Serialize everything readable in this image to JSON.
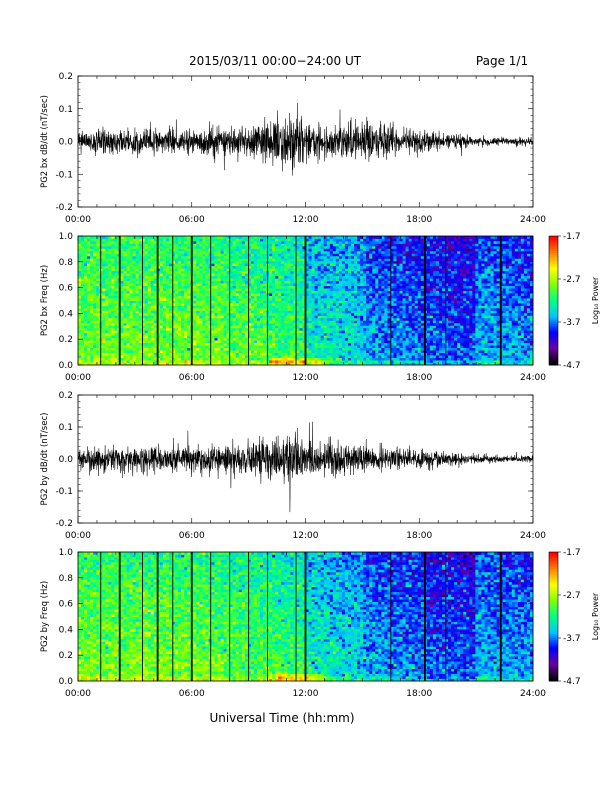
{
  "header": {
    "title": "2015/03/11  00:00−24:00 UT",
    "page": "Page 1/1"
  },
  "footer": {
    "xlabel": "Universal Time (hh:mm)"
  },
  "chart_data": [
    {
      "type": "line",
      "ylabel": "PG2 bx dB/dt (nT/sec)",
      "xlim": [
        0,
        24
      ],
      "ylim": [
        -0.2,
        0.2
      ],
      "yticks": [
        "-0.2",
        "-0.1",
        "0.0",
        "0.1",
        "0.2"
      ],
      "xticks": [
        "00:00",
        "06:00",
        "12:00",
        "18:00",
        "24:00"
      ],
      "envelope_hours": [
        0,
        1,
        2,
        3,
        4,
        5,
        6,
        7,
        8,
        9,
        10,
        11,
        12,
        13,
        14,
        15,
        16,
        17,
        18,
        19,
        20,
        21,
        22,
        23,
        24
      ],
      "envelope_amplitude": [
        0.035,
        0.04,
        0.038,
        0.04,
        0.042,
        0.04,
        0.038,
        0.045,
        0.045,
        0.055,
        0.07,
        0.09,
        0.06,
        0.055,
        0.055,
        0.06,
        0.06,
        0.045,
        0.035,
        0.03,
        0.025,
        0.015,
        0.013,
        0.013,
        0.013
      ],
      "grid": false
    },
    {
      "type": "heatmap",
      "ylabel": "PG2 bx Freq (Hz)",
      "xlim": [
        0,
        24
      ],
      "ylim": [
        0,
        1.0
      ],
      "yticks": [
        "0.0",
        "0.2",
        "0.4",
        "0.6",
        "0.8",
        "1.0"
      ],
      "xticks": [
        "00:00",
        "06:00",
        "12:00",
        "18:00",
        "24:00"
      ],
      "colorbar": {
        "label": "Log₁₀ Power",
        "ticks": [
          "-1.7",
          "-2.7",
          "-3.7",
          "-4.7"
        ],
        "range": [
          -4.7,
          -1.7
        ]
      },
      "gap_lines_hours": [
        1.2,
        2.2,
        3.4,
        4.2,
        5.0,
        6.0,
        7.0,
        8.0,
        9.0,
        10.0,
        11.5,
        12.0,
        16.5,
        18.3,
        19.4,
        22.3
      ],
      "thick_gap_lines_hours": [
        2.2,
        4.2,
        6.0,
        12.0,
        18.3,
        22.3
      ]
    },
    {
      "type": "line",
      "ylabel": "PG2 by dB/dt (nT/sec)",
      "xlim": [
        0,
        24
      ],
      "ylim": [
        -0.2,
        0.2
      ],
      "yticks": [
        "-0.2",
        "-0.1",
        "0.0",
        "0.1",
        "0.2"
      ],
      "xticks": [
        "00:00",
        "06:00",
        "12:00",
        "18:00",
        "24:00"
      ],
      "envelope_hours": [
        0,
        1,
        2,
        3,
        4,
        5,
        6,
        7,
        8,
        9,
        10,
        11,
        12,
        13,
        14,
        15,
        16,
        17,
        18,
        19,
        20,
        21,
        22,
        23,
        24
      ],
      "envelope_amplitude": [
        0.035,
        0.04,
        0.04,
        0.042,
        0.045,
        0.04,
        0.042,
        0.045,
        0.045,
        0.05,
        0.06,
        0.11,
        0.06,
        0.05,
        0.05,
        0.045,
        0.04,
        0.035,
        0.03,
        0.025,
        0.02,
        0.013,
        0.012,
        0.012,
        0.012
      ],
      "grid": false
    },
    {
      "type": "heatmap",
      "ylabel": "PG2 by Freq (Hz)",
      "xlim": [
        0,
        24
      ],
      "ylim": [
        0,
        1.0
      ],
      "yticks": [
        "0.0",
        "0.2",
        "0.4",
        "0.6",
        "0.8",
        "1.0"
      ],
      "xticks": [
        "00:00",
        "06:00",
        "12:00",
        "18:00",
        "24:00"
      ],
      "colorbar": {
        "label": "Log₁₀ Power",
        "ticks": [
          "-1.7",
          "-2.7",
          "-3.7",
          "-4.7"
        ],
        "range": [
          -4.7,
          -1.7
        ]
      },
      "gap_lines_hours": [
        1.2,
        2.2,
        3.4,
        4.2,
        5.0,
        6.0,
        7.0,
        8.0,
        9.0,
        10.0,
        11.5,
        12.0,
        16.5,
        18.3,
        19.4,
        22.3
      ],
      "thick_gap_lines_hours": [
        2.2,
        4.2,
        6.0,
        12.0,
        18.3,
        22.3
      ]
    }
  ],
  "colors": {
    "trace": "#000000",
    "colormap": [
      "#000000",
      "#6a00a8",
      "#0000ff",
      "#00c8ff",
      "#00ff80",
      "#80ff00",
      "#ffff00",
      "#ff8000",
      "#ff0000"
    ]
  }
}
